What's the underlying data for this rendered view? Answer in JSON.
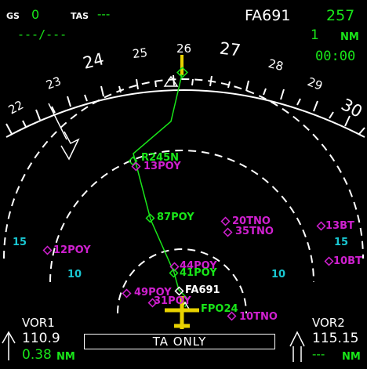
{
  "top_left": {
    "gs_label": "GS",
    "gs_value": "0",
    "tas_label": "TAS",
    "tas_value": "---",
    "wind": "---/---"
  },
  "top_right": {
    "flight": "FA691",
    "heading_or_track": "257",
    "dist_value": "1",
    "dist_unit": "NM",
    "time": "00:00"
  },
  "compass": {
    "labels": [
      "22",
      "23",
      "24",
      "25",
      "26",
      "27",
      "28",
      "29",
      "30"
    ],
    "current_heading_mark": "26"
  },
  "range_rings": {
    "outer_left": "15",
    "outer_right": "15",
    "inner_left": "10",
    "inner_right": "10"
  },
  "waypoints": [
    {
      "name": "R245N",
      "color": "#19e619"
    },
    {
      "name": "13POY",
      "color": "#d020d0"
    },
    {
      "name": "87POY",
      "color": "#19e619"
    },
    {
      "name": "20TNO",
      "color": "#d020d0"
    },
    {
      "name": "35TNO",
      "color": "#d020d0"
    },
    {
      "name": "13BT",
      "color": "#d020d0"
    },
    {
      "name": "10BT",
      "color": "#d020d0"
    },
    {
      "name": "12POY",
      "color": "#d020d0"
    },
    {
      "name": "44POY",
      "color": "#d020d0"
    },
    {
      "name": "41POY",
      "color": "#19e619"
    },
    {
      "name": "FA691",
      "color": "#ffffff"
    },
    {
      "name": "49POY",
      "color": "#d020d0"
    },
    {
      "name": "31POY",
      "color": "#d020d0"
    },
    {
      "name": "FPO24",
      "color": "#19e619"
    },
    {
      "name": "10TNO",
      "color": "#d020d0"
    }
  ],
  "vor1": {
    "label": "VOR1",
    "freq": "110.9",
    "dist": "0.38",
    "unit": "NM"
  },
  "vor2": {
    "label": "VOR2",
    "freq": "115.15",
    "dist": "---",
    "unit": "NM"
  },
  "mode_box": {
    "text": "TA ONLY"
  },
  "colors": {
    "route": "#19e619",
    "waypoint_magenta": "#d020d0",
    "range_cyan": "#19c7d2",
    "aircraft_symbol": "#e8d200",
    "text_white": "#ffffff"
  }
}
